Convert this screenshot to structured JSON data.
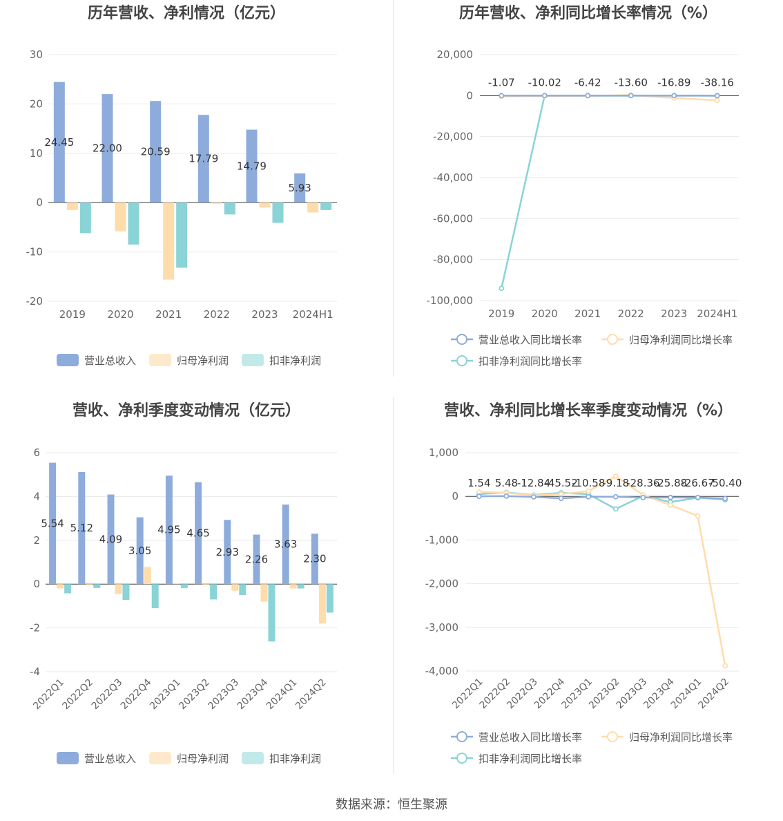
{
  "source_text": "数据来源：恒生聚源",
  "colors": {
    "revenue": "#8eacdb",
    "net_profit": "#ffdcaa",
    "deducted": "#8ad3d6",
    "rev_growth": "#8eacdb",
    "np_growth": "#ffdcaa",
    "ded_growth": "#8ad3d6"
  },
  "chart_data": [
    {
      "id": "annual-bar",
      "type": "bar",
      "title": "历年营收、净利情况（亿元）",
      "categories": [
        "2019",
        "2020",
        "2021",
        "2022",
        "2023",
        "2024H1"
      ],
      "ylim": [
        -20,
        30
      ],
      "yticks": [
        30,
        20,
        10,
        0,
        -10,
        -20
      ],
      "series": [
        {
          "name": "营业总收入",
          "values": [
            24.45,
            22.0,
            20.59,
            17.79,
            14.79,
            5.93
          ]
        },
        {
          "name": "归母净利润",
          "values": [
            -1.5,
            -5.8,
            -15.6,
            -0.2,
            -1.0,
            -2.0
          ]
        },
        {
          "name": "扣非净利润",
          "values": [
            -6.2,
            -8.5,
            -13.2,
            -2.4,
            -4.1,
            -1.5
          ]
        }
      ],
      "data_labels": [
        "24.45",
        "22.00",
        "20.59",
        "17.79",
        "14.79",
        "5.93"
      ],
      "legend": "bottom",
      "grid": true
    },
    {
      "id": "annual-growth",
      "type": "line",
      "title": "历年营收、净利同比增长率情况（%）",
      "categories": [
        "2019",
        "2020",
        "2021",
        "2022",
        "2023",
        "2024H1"
      ],
      "ylim": [
        -100000,
        20000
      ],
      "yticks": [
        "20,000",
        "0",
        "-20,000",
        "-40,000",
        "-60,000",
        "-80,000",
        "-100,000"
      ],
      "ytick_values": [
        20000,
        0,
        -20000,
        -40000,
        -60000,
        -80000,
        -100000
      ],
      "series": [
        {
          "name": "营业总收入同比增长率",
          "values": [
            -1.07,
            -10.02,
            -6.42,
            -13.6,
            -16.89,
            -38.16
          ]
        },
        {
          "name": "归母净利润同比增长率",
          "values": [
            -400,
            -200,
            -150,
            300,
            -1200,
            -2300
          ]
        },
        {
          "name": "扣非净利润同比增长率",
          "values": [
            -94000,
            0,
            0,
            0,
            0,
            0
          ]
        }
      ],
      "data_labels": [
        "-1.07",
        "-10.02",
        "-6.42",
        "-13.60",
        "-16.89",
        "-38.16"
      ],
      "legend": "bottom",
      "grid": true
    },
    {
      "id": "quarterly-bar",
      "type": "bar",
      "title": "营收、净利季度变动情况（亿元）",
      "categories": [
        "2022Q1",
        "2022Q2",
        "2022Q3",
        "2022Q4",
        "2023Q1",
        "2023Q2",
        "2023Q3",
        "2023Q4",
        "2024Q1",
        "2024Q2"
      ],
      "ylim": [
        -4,
        6
      ],
      "yticks": [
        6,
        4,
        2,
        0,
        -2,
        -4
      ],
      "series": [
        {
          "name": "营业总收入",
          "values": [
            5.54,
            5.12,
            4.09,
            3.05,
            4.95,
            4.65,
            2.93,
            2.26,
            3.63,
            2.3
          ]
        },
        {
          "name": "归母净利润",
          "values": [
            -0.2,
            -0.05,
            -0.45,
            0.78,
            0.05,
            -0.05,
            -0.3,
            -0.8,
            -0.2,
            -1.8
          ]
        },
        {
          "name": "扣非净利润",
          "values": [
            -0.42,
            -0.18,
            -0.72,
            -1.1,
            -0.18,
            -0.7,
            -0.5,
            -2.62,
            -0.2,
            -1.3
          ]
        }
      ],
      "data_labels": [
        "5.54",
        "5.12",
        "4.09",
        "3.05",
        "4.95",
        "4.65",
        "2.93",
        "2.26",
        "3.63",
        "2.30"
      ],
      "legend": "bottom",
      "grid": true
    },
    {
      "id": "quarterly-growth",
      "type": "line",
      "title": "营收、净利同比增长率季度变动情况（%）",
      "categories": [
        "2022Q1",
        "2022Q2",
        "2022Q3",
        "2022Q4",
        "2023Q1",
        "2023Q2",
        "2023Q3",
        "2023Q4",
        "2024Q1",
        "2024Q2"
      ],
      "ylim": [
        -4000,
        1000
      ],
      "yticks": [
        "1,000",
        "0",
        "-1,000",
        "-2,000",
        "-3,000",
        "-4,000"
      ],
      "ytick_values": [
        1000,
        0,
        -1000,
        -2000,
        -3000,
        -4000
      ],
      "series": [
        {
          "name": "营业总收入同比增长率",
          "values": [
            1.54,
            5.48,
            -12.84,
            -45.52,
            -10.58,
            -9.18,
            -28.36,
            -25.88,
            -26.67,
            -50.4
          ]
        },
        {
          "name": "归母净利润同比增长率",
          "values": [
            100,
            80,
            20,
            50,
            120,
            460,
            30,
            -200,
            -450,
            -3880
          ]
        },
        {
          "name": "扣非净利润同比增长率",
          "values": [
            50,
            90,
            30,
            80,
            50,
            -290,
            10,
            -130,
            -30,
            -80
          ]
        }
      ],
      "data_labels": [
        "1.54",
        "5.48",
        "-12.84",
        "-45.52",
        "-10.58",
        "-9.18",
        "-28.36",
        "-25.88",
        "-26.67",
        "-50.40"
      ],
      "legend": "bottom",
      "grid": true
    }
  ]
}
